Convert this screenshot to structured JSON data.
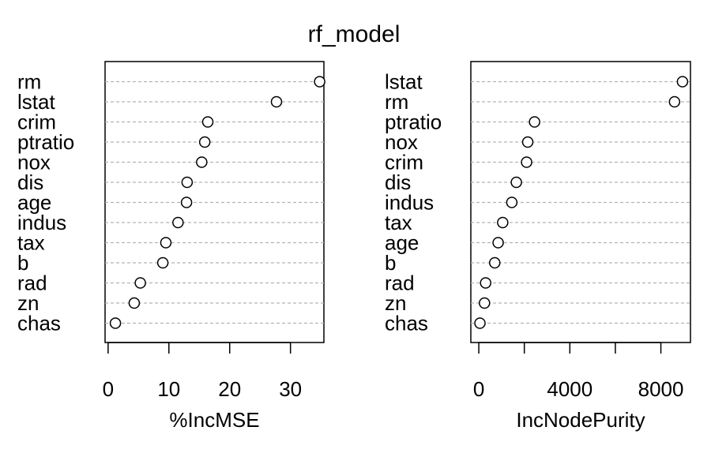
{
  "title": "rf_model",
  "chart_data": [
    {
      "type": "scatter",
      "style": "dotchart",
      "title": "rf_model",
      "xlabel": "%IncMSE",
      "ylabel": "",
      "xlim": [
        -0.5,
        35.5
      ],
      "xticks": [
        0,
        10,
        20,
        30
      ],
      "grid": "dashed horizontal lines per category",
      "categories": [
        "rm",
        "lstat",
        "crim",
        "ptratio",
        "nox",
        "dis",
        "age",
        "indus",
        "tax",
        "b",
        "rad",
        "zn",
        "chas"
      ],
      "values": [
        34.8,
        27.7,
        16.4,
        15.9,
        15.4,
        13.0,
        12.9,
        11.5,
        9.5,
        9.0,
        5.3,
        4.3,
        1.2
      ]
    },
    {
      "type": "scatter",
      "style": "dotchart",
      "xlabel": "IncNodePurity",
      "ylabel": "",
      "xlim": [
        -350,
        9300
      ],
      "xticks": [
        0,
        4000,
        8000
      ],
      "xticks_minor": [
        2000,
        6000
      ],
      "grid": "dashed horizontal lines per category",
      "categories": [
        "lstat",
        "rm",
        "ptratio",
        "nox",
        "crim",
        "dis",
        "indus",
        "tax",
        "age",
        "b",
        "rad",
        "zn",
        "chas"
      ],
      "values": [
        8950,
        8600,
        2450,
        2150,
        2100,
        1650,
        1450,
        1050,
        850,
        700,
        300,
        250,
        50
      ]
    }
  ]
}
